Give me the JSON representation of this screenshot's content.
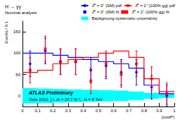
{
  "chart_data": {
    "type": "histogram",
    "title": "H → γγ",
    "subtitle": "Nominal analysis",
    "annotations": [
      "ATLAS Preliminary",
      "Data 2012, ∫ L dt = 20.7 fb⁻¹, √s = 8 TeV"
    ],
    "x_label": "|cosθ*|",
    "y_label": "Events / 0.1",
    "bins": [
      0,
      0.1,
      0.2,
      0.3,
      0.4,
      0.5,
      0.6,
      0.7,
      0.8,
      0.9,
      1
    ],
    "series": [
      {
        "name": "Jᴾ = 0⁺ (SM) pdf",
        "type": "step",
        "color": "#0000ff",
        "line_style": "solid",
        "values": [
          100,
          100,
          95,
          90,
          85,
          80,
          75,
          65,
          25,
          5
        ]
      },
      {
        "name": "Jᴾ = 2⁺ (100% gg) pdf",
        "type": "step",
        "color": "#ff0000",
        "line_style": "solid",
        "values": [
          55,
          60,
          75,
          85,
          90,
          100,
          105,
          90,
          40,
          10
        ]
      },
      {
        "name": "Jᴾ = 0⁺ (SM) fit",
        "type": "scatter",
        "color": "#0000ff",
        "marker": "circle",
        "values": [
          75,
          105,
          80,
          80,
          60,
          70,
          55,
          55,
          20,
          0
        ],
        "errors": [
          30,
          30,
          30,
          30,
          30,
          30,
          30,
          30,
          28,
          25
        ]
      },
      {
        "name": "Jᴾ = 2⁺ (100% gg) fit",
        "type": "scatter",
        "color": "#ff0000",
        "marker": "square",
        "values": [
          60,
          110,
          80,
          80,
          35,
          75,
          50,
          75,
          40,
          5
        ],
        "errors": [
          30,
          30,
          30,
          30,
          30,
          30,
          30,
          30,
          28,
          25
        ]
      }
    ],
    "background_uncertainty": {
      "name": "Backgroung systematic uncertainty",
      "color": "#00ffff",
      "low": [
        -18,
        -17,
        -16,
        -15,
        -14,
        -13,
        -12,
        -10,
        -7,
        -5
      ],
      "high": [
        18,
        17,
        16,
        15,
        14,
        13,
        12,
        10,
        7,
        5
      ]
    },
    "xlim": [
      0,
      1
    ],
    "xticks": [
      0,
      0.1,
      0.2,
      0.3,
      0.4,
      0.5,
      0.6,
      0.7,
      0.8,
      0.9,
      1
    ],
    "ylim": [
      -25,
      175
    ],
    "yticks": [
      0,
      50,
      100,
      150
    ],
    "legend": "upper right"
  }
}
